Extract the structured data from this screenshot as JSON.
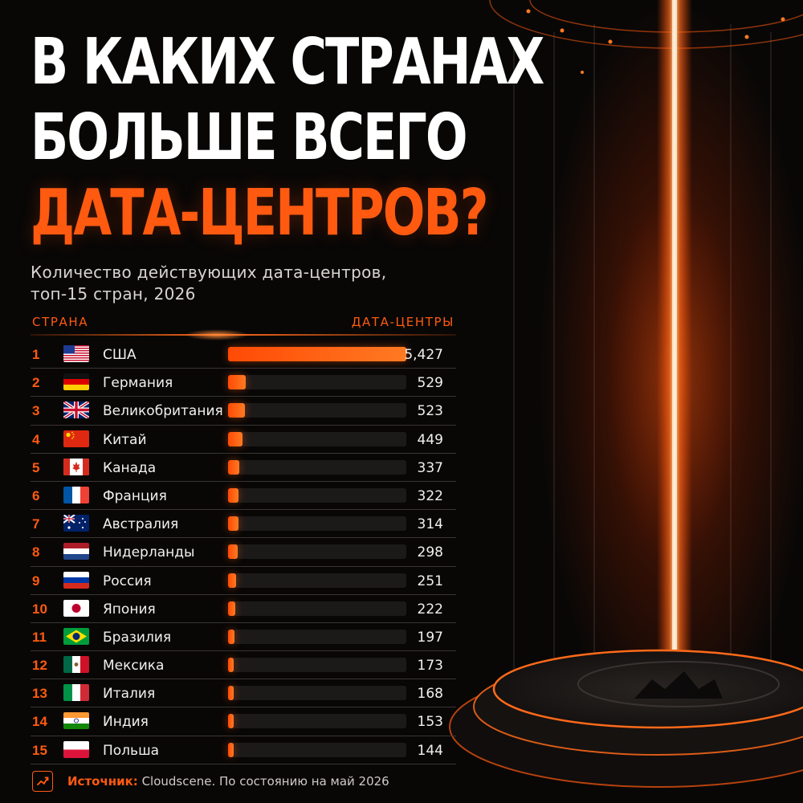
{
  "title": {
    "line1": "В КАКИХ СТРАНАХ",
    "line2": "БОЛЬШЕ ВСЕГО",
    "line3": "ДАТА-ЦЕНТРОВ?"
  },
  "subtitle": {
    "line1": "Количество действующих дата-центров,",
    "line2": "топ-15 стран, 2026"
  },
  "columns": {
    "country": "СТРАНА",
    "datacenters": "ДАТА-ЦЕНТРЫ"
  },
  "colors": {
    "accent": "#ff5a10",
    "background": "#080706",
    "text": "#ffffff"
  },
  "chart_data": {
    "type": "bar",
    "orientation": "horizontal",
    "title": "В КАКИХ СТРАНАХ БОЛЬШЕ ВСЕГО ДАТА-ЦЕНТРОВ?",
    "subtitle": "Количество действующих дата-центров, топ-15 стран, 2026",
    "xlabel": "ДАТА-ЦЕНТРЫ",
    "ylabel": "СТРАНА",
    "xlim": [
      0,
      5427
    ],
    "grid": false,
    "rows": [
      {
        "rank": "1",
        "country": "США",
        "flag": "us-flag",
        "value": 5427,
        "label": "5,427"
      },
      {
        "rank": "2",
        "country": "Германия",
        "flag": "de-flag",
        "value": 529,
        "label": "529"
      },
      {
        "rank": "3",
        "country": "Великобритания",
        "flag": "gb-flag",
        "value": 523,
        "label": "523"
      },
      {
        "rank": "4",
        "country": "Китай",
        "flag": "cn-flag",
        "value": 449,
        "label": "449"
      },
      {
        "rank": "5",
        "country": "Канада",
        "flag": "ca-flag",
        "value": 337,
        "label": "337"
      },
      {
        "rank": "6",
        "country": "Франция",
        "flag": "fr-flag",
        "value": 322,
        "label": "322"
      },
      {
        "rank": "7",
        "country": "Австралия",
        "flag": "au-flag",
        "value": 314,
        "label": "314"
      },
      {
        "rank": "8",
        "country": "Нидерланды",
        "flag": "nl-flag",
        "value": 298,
        "label": "298"
      },
      {
        "rank": "9",
        "country": "Россия",
        "flag": "ru-flag",
        "value": 251,
        "label": "251"
      },
      {
        "rank": "10",
        "country": "Япония",
        "flag": "jp-flag",
        "value": 222,
        "label": "222"
      },
      {
        "rank": "11",
        "country": "Бразилия",
        "flag": "br-flag",
        "value": 197,
        "label": "197"
      },
      {
        "rank": "12",
        "country": "Мексика",
        "flag": "mx-flag",
        "value": 173,
        "label": "173"
      },
      {
        "rank": "13",
        "country": "Италия",
        "flag": "it-flag",
        "value": 168,
        "label": "168"
      },
      {
        "rank": "14",
        "country": "Индия",
        "flag": "in-flag",
        "value": 153,
        "label": "153"
      },
      {
        "rank": "15",
        "country": "Польша",
        "flag": "pl-flag",
        "value": 144,
        "label": "144"
      }
    ]
  },
  "source": {
    "icon": "chart-icon",
    "label": "Источник:",
    "text": " Cloudscene. По состоянию на май 2026"
  }
}
